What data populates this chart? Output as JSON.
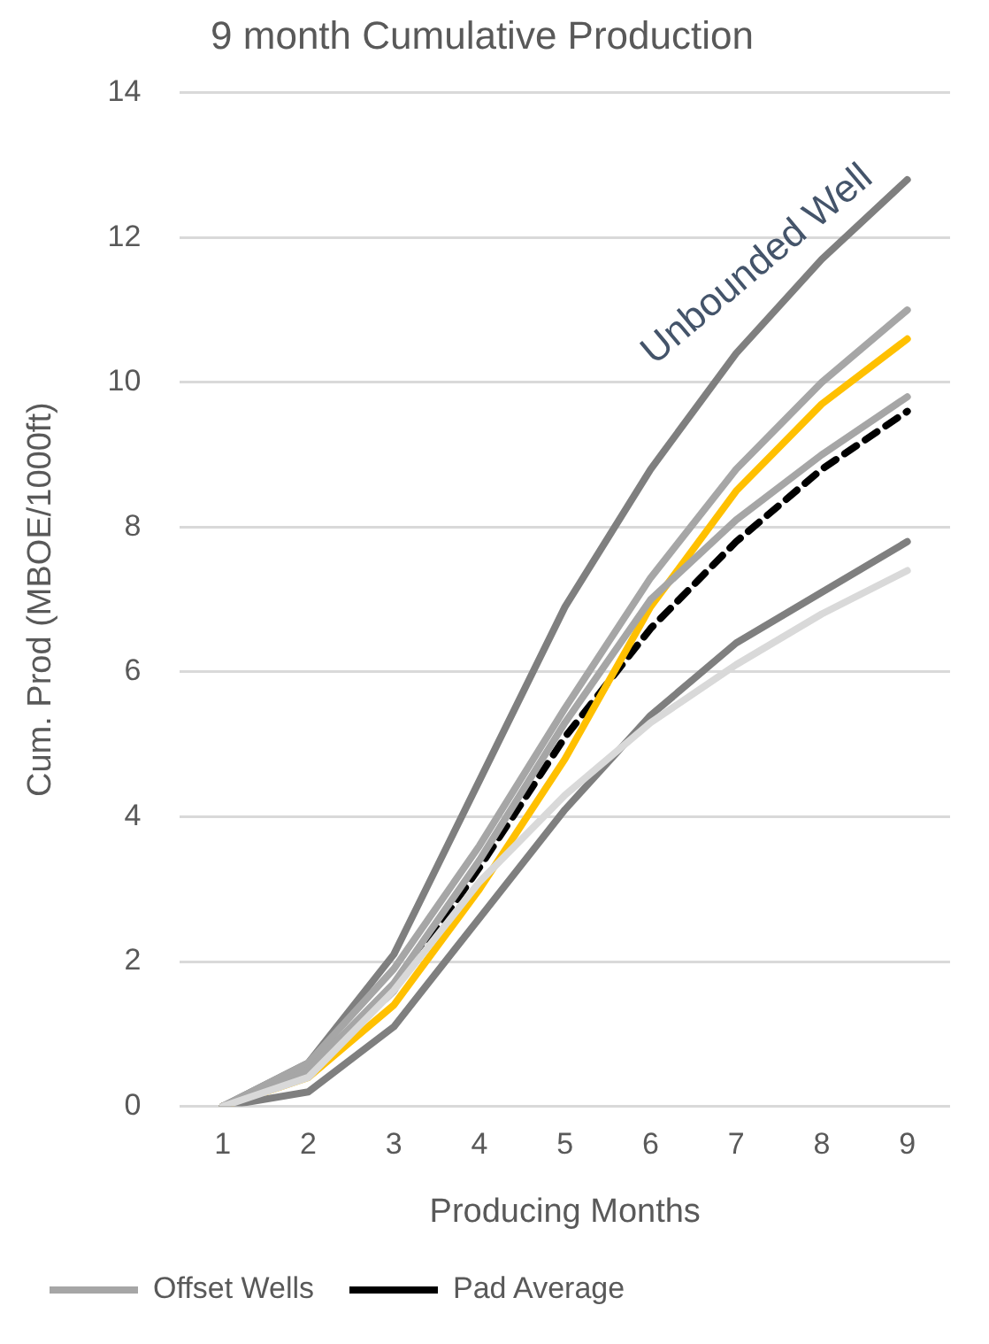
{
  "chart_data": {
    "type": "line",
    "title": "9 month Cumulative Production",
    "xlabel": "Producing Months",
    "ylabel": "Cum. Prod (MBOE/1000ft)",
    "x": [
      1,
      2,
      3,
      4,
      5,
      6,
      7,
      8,
      9
    ],
    "xlim": [
      0.5,
      9.5
    ],
    "xticks": [
      1,
      2,
      3,
      4,
      5,
      6,
      7,
      8,
      9
    ],
    "ylim": [
      0,
      14
    ],
    "yticks": [
      0,
      2,
      4,
      6,
      8,
      10,
      12,
      14
    ],
    "grid": "y",
    "legend": "bottom",
    "marker": "none",
    "series": [
      {
        "color": "#d9d9d9",
        "values": [
          0,
          0.4,
          1.6,
          3.1,
          4.3,
          5.3,
          6.1,
          6.8,
          7.4
        ]
      },
      {
        "color": "#7f7f7f",
        "values": [
          0,
          0.2,
          1.1,
          2.6,
          4.1,
          5.4,
          6.4,
          7.1,
          7.8
        ]
      },
      {
        "color": "#a6a6a6",
        "values": [
          0,
          0.5,
          1.7,
          3.4,
          5.3,
          7.0,
          8.1,
          9.0,
          9.8
        ]
      },
      {
        "name": "Offset Wells",
        "color": "#a6a6a6",
        "values": [
          0,
          0.6,
          1.9,
          3.6,
          5.5,
          7.3,
          8.8,
          10.0,
          11.0
        ]
      },
      {
        "color": "#7f7f7f",
        "values": [
          0,
          0.6,
          2.1,
          4.5,
          6.9,
          8.8,
          10.4,
          11.7,
          12.8
        ]
      },
      {
        "color": "#ffc000",
        "values": [
          0,
          0.4,
          1.4,
          3.0,
          4.8,
          6.9,
          8.5,
          9.7,
          10.6
        ]
      },
      {
        "name": "Pad Average",
        "color": "#000000",
        "line_style": "dashed",
        "values": [
          0,
          0.45,
          1.6,
          3.3,
          5.1,
          6.6,
          7.8,
          8.8,
          9.6
        ]
      }
    ],
    "annotations": [
      "Unbounded Well"
    ]
  }
}
